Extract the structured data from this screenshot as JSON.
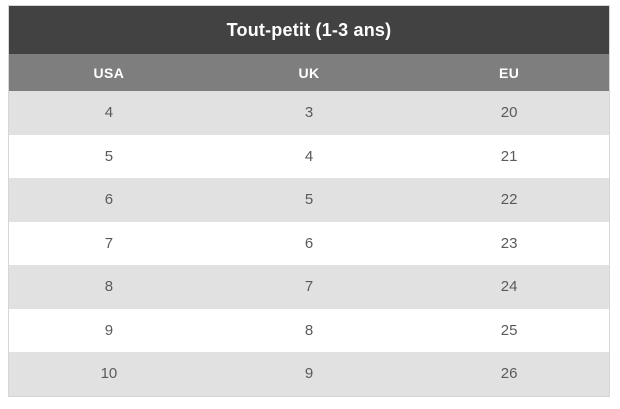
{
  "chart_data": {
    "type": "table",
    "title": "Tout-petit (1-3 ans)",
    "columns": [
      "USA",
      "UK",
      "EU"
    ],
    "rows": [
      [
        "4",
        "3",
        "20"
      ],
      [
        "5",
        "4",
        "21"
      ],
      [
        "6",
        "5",
        "22"
      ],
      [
        "7",
        "6",
        "23"
      ],
      [
        "8",
        "7",
        "24"
      ],
      [
        "9",
        "8",
        "25"
      ],
      [
        "10",
        "9",
        "26"
      ]
    ]
  },
  "colors": {
    "page_bg": "#ffffff",
    "title_bg": "#424242",
    "header_bg": "#7e7e7e",
    "row_alt_bg": "#e1e1e1",
    "row_bg": "#ffffff",
    "header_text": "#ffffff",
    "cell_text": "#5a5a5a",
    "border": "#d6d6d6"
  }
}
